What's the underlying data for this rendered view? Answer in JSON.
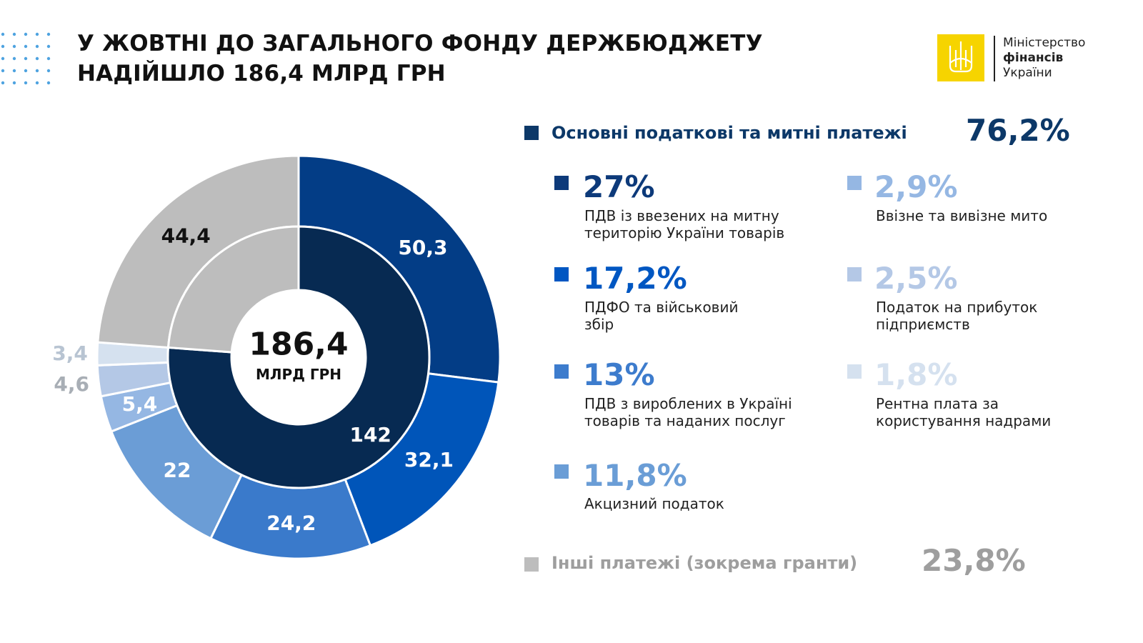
{
  "title_line1": "У ЖОВТНІ ДО ЗАГАЛЬНОГО ФОНДУ ДЕРЖБЮДЖЕТУ",
  "title_line2": "НАДІЙШЛО 186,4 МЛРД ГРН",
  "logo": {
    "line1": "Міністерство",
    "line2": "фінансів",
    "line3": "України",
    "emblem_icon": "trident-icon",
    "color": "#F6D400"
  },
  "center": {
    "value": "186,4",
    "unit": "МЛРД ГРН"
  },
  "groups": {
    "main": {
      "label": "Основні податкові та митні платежі",
      "pct": "76,2%",
      "color": "#0C3868"
    },
    "other": {
      "label": "Інші платежі (зокрема гранти)",
      "pct": "23,8%",
      "color": "#BDBDBD"
    }
  },
  "items": [
    {
      "pct": "27%",
      "label": "ПДВ із ввезених на митну територію України товарів",
      "color": "#0D3A7A"
    },
    {
      "pct": "17,2%",
      "label": "ПДФО та військовий збір",
      "color": "#0057C2"
    },
    {
      "pct": "13%",
      "label": "ПДВ з вироблених в Україні товарів та наданих послуг",
      "color": "#3D7CCD"
    },
    {
      "pct": "11,8%",
      "label": "Акцизний податок",
      "color": "#6A9DD6"
    },
    {
      "pct": "2,9%",
      "label": "Ввізне та вивізне мито",
      "color": "#95B7E3"
    },
    {
      "pct": "2,5%",
      "label": "Податок на прибуток підприємств",
      "color": "#B4C8E6"
    },
    {
      "pct": "1,8%",
      "label": "Рентна плата за користування надрами",
      "color": "#D5E1EF"
    }
  ],
  "chart_data": {
    "type": "pie",
    "total": 186.4,
    "outer_ring": {
      "values": [
        50.3,
        32.1,
        24.2,
        22,
        5.4,
        4.6,
        3.4,
        44.4
      ],
      "labels": [
        "50,3",
        "32,1",
        "24,2",
        "22",
        "5,4",
        "4,6",
        "3,4",
        "44,4"
      ],
      "colors": [
        "#033D86",
        "#0055B9",
        "#3A7ACB",
        "#6B9DD6",
        "#95B7E3",
        "#B4C8E6",
        "#D5E1EF",
        "#BDBDBD"
      ],
      "label_colors": [
        "#FFFFFF",
        "#FFFFFF",
        "#FFFFFF",
        "#FFFFFF",
        "#FFFFFF",
        "#A8AEB5",
        "#B8C4D2",
        "#111111"
      ]
    },
    "inner_ring": {
      "values": [
        142,
        44.4
      ],
      "labels": [
        "142",
        ""
      ],
      "colors": [
        "#072A52",
        "#BDBDBD"
      ],
      "label_colors": [
        "#FFFFFF",
        "#111111"
      ]
    }
  }
}
